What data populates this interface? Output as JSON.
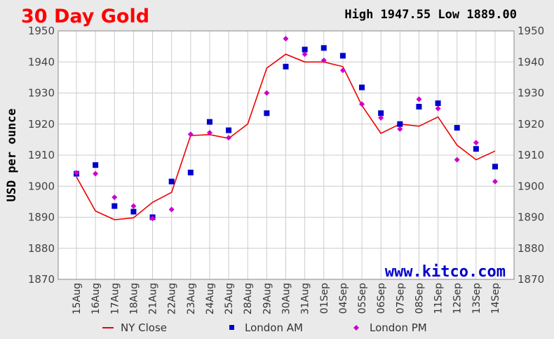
{
  "chart_data": {
    "type": "line",
    "title": "30 Day Gold",
    "subtitle": "High 1947.55 Low 1889.00",
    "ylabel": "USD per ounce",
    "watermark": "www.kitco.com",
    "ylim": [
      1870,
      1950
    ],
    "yticks": [
      1870,
      1880,
      1890,
      1900,
      1910,
      1920,
      1930,
      1940,
      1950
    ],
    "grid": true,
    "legend_position": "bottom",
    "categories": [
      "15Aug",
      "16Aug",
      "17Aug",
      "18Aug",
      "21Aug",
      "22Aug",
      "23Aug",
      "24Aug",
      "25Aug",
      "28Aug",
      "29Aug",
      "30Aug",
      "31Aug",
      "01Sep",
      "04Sep",
      "05Sep",
      "06Sep",
      "07Sep",
      "08Sep",
      "11Sep",
      "12Sep",
      "13Sep",
      "14Sep"
    ],
    "series": [
      {
        "name": "NY Close",
        "style": "line",
        "color": "#ee0000",
        "values": [
          1903.0,
          1892.0,
          1889.2,
          1889.8,
          1894.8,
          1898.0,
          1916.3,
          1916.6,
          1915.4,
          1920.0,
          1938.0,
          1942.5,
          1940.0,
          1940.0,
          1938.5,
          1926.0,
          1917.0,
          1920.0,
          1919.3,
          1922.3,
          1913.2,
          1908.5,
          1911.3
        ]
      },
      {
        "name": "London AM",
        "style": "square",
        "color": "#0000cc",
        "values": [
          1904.0,
          1906.8,
          1893.6,
          1891.8,
          1890.0,
          1901.5,
          1904.4,
          1920.7,
          1918.0,
          null,
          1923.5,
          1938.5,
          1944.0,
          1944.5,
          1942.0,
          1931.8,
          1923.5,
          1920.0,
          1925.6,
          1926.7,
          1918.8,
          1912.0,
          1906.3
        ]
      },
      {
        "name": "London PM",
        "style": "diamond",
        "color": "#cc00cc",
        "values": [
          1904.3,
          1904.0,
          1896.4,
          1893.6,
          1889.6,
          1892.5,
          1916.7,
          1917.2,
          1915.6,
          null,
          1930.0,
          1947.5,
          1942.5,
          1940.5,
          1937.3,
          1926.4,
          1922.0,
          1918.4,
          1928.0,
          1925.0,
          1908.5,
          1914.0,
          1901.5
        ]
      }
    ]
  }
}
